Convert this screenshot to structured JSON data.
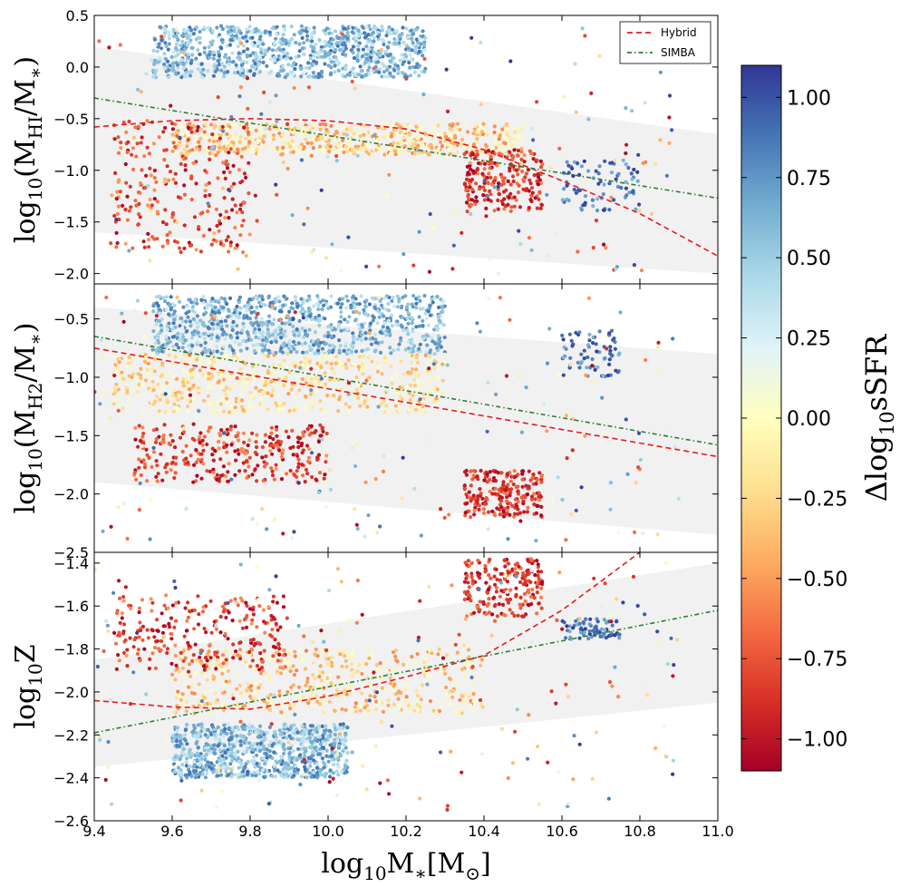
{
  "chart_data": [
    {
      "type": "scatter",
      "ylabel": "log10(MHI/M*)",
      "ylim": [
        -2.1,
        0.5
      ],
      "yticks": [
        "−2.0",
        "−1.5",
        "−1.0",
        "−0.5",
        "0.0",
        "0.5"
      ],
      "band": {
        "x": [
          9.4,
          11.0
        ],
        "lower": [
          -1.6,
          -2.0
        ],
        "upper": [
          0.2,
          -0.65
        ]
      },
      "clusters": [
        {
          "x": [
            9.55,
            10.25
          ],
          "y": [
            -0.1,
            0.4
          ],
          "dsfr": [
            0.3,
            0.9
          ],
          "n": 900
        },
        {
          "x": [
            9.6,
            10.5
          ],
          "y": [
            -0.85,
            -0.55
          ],
          "dsfr": [
            -0.6,
            0.1
          ],
          "n": 550
        },
        {
          "x": [
            9.45,
            9.8
          ],
          "y": [
            -1.8,
            -0.5
          ],
          "dsfr": [
            -1.1,
            -0.5
          ],
          "n": 250
        },
        {
          "x": [
            10.35,
            10.55
          ],
          "y": [
            -1.4,
            -0.8
          ],
          "dsfr": [
            -1.1,
            -0.6
          ],
          "n": 220
        },
        {
          "x": [
            10.6,
            10.8
          ],
          "y": [
            -1.4,
            -0.9
          ],
          "dsfr": [
            0.6,
            1.1
          ],
          "n": 80
        },
        {
          "x": [
            9.4,
            10.9
          ],
          "y": [
            -2.0,
            0.4
          ],
          "dsfr": [
            -1.1,
            1.1
          ],
          "n": 200
        }
      ],
      "lines": [
        {
          "name": "Hybrid",
          "style": "dashed",
          "color": "#e41a1c",
          "x": [
            9.4,
            9.6,
            9.8,
            10.0,
            10.2,
            10.4,
            10.6,
            10.8,
            11.0
          ],
          "y": [
            -0.58,
            -0.52,
            -0.5,
            -0.52,
            -0.6,
            -0.8,
            -1.1,
            -1.42,
            -1.83
          ]
        },
        {
          "name": "SIMBA",
          "style": "dashdot",
          "color": "#2e7d32",
          "x": [
            9.4,
            11.0
          ],
          "y": [
            -0.3,
            -1.27
          ]
        }
      ],
      "legend": "top-right"
    },
    {
      "type": "scatter",
      "ylabel": "log10(MH2/M*)",
      "ylim": [
        -2.5,
        -0.2
      ],
      "yticks": [
        "−2.5",
        "−2.0",
        "−1.5",
        "−1.0",
        "−0.5"
      ],
      "band": {
        "x": [
          9.4,
          11.0
        ],
        "lower": [
          -1.9,
          -2.35
        ],
        "upper": [
          -0.4,
          -0.8
        ]
      },
      "clusters": [
        {
          "x": [
            9.55,
            10.3
          ],
          "y": [
            -0.8,
            -0.3
          ],
          "dsfr": [
            0.3,
            0.9
          ],
          "n": 900
        },
        {
          "x": [
            9.45,
            10.3
          ],
          "y": [
            -1.3,
            -0.8
          ],
          "dsfr": [
            -0.5,
            0.1
          ],
          "n": 550
        },
        {
          "x": [
            9.5,
            10.0
          ],
          "y": [
            -1.9,
            -1.4
          ],
          "dsfr": [
            -1.1,
            -0.5
          ],
          "n": 300
        },
        {
          "x": [
            10.35,
            10.55
          ],
          "y": [
            -2.2,
            -1.8
          ],
          "dsfr": [
            -1.1,
            -0.6
          ],
          "n": 220
        },
        {
          "x": [
            10.6,
            10.75
          ],
          "y": [
            -1.0,
            -0.6
          ],
          "dsfr": [
            0.6,
            1.1
          ],
          "n": 70
        },
        {
          "x": [
            9.4,
            10.9
          ],
          "y": [
            -2.4,
            -0.3
          ],
          "dsfr": [
            -1.1,
            1.1
          ],
          "n": 200
        }
      ],
      "lines": [
        {
          "name": "Hybrid",
          "style": "dashed",
          "color": "#e41a1c",
          "x": [
            9.4,
            11.0
          ],
          "y": [
            -0.75,
            -1.68
          ]
        },
        {
          "name": "SIMBA",
          "style": "dashdot",
          "color": "#2e7d32",
          "x": [
            9.4,
            11.0
          ],
          "y": [
            -0.65,
            -1.58
          ]
        }
      ]
    },
    {
      "type": "scatter",
      "ylabel": "log10Z",
      "ylim": [
        -2.6,
        -1.35
      ],
      "yticks": [
        "−2.6",
        "−2.4",
        "−2.2",
        "−2.0",
        "−1.8",
        "−1.6",
        "−1.4"
      ],
      "band": {
        "x": [
          9.4,
          11.0
        ],
        "lower": [
          -2.35,
          -2.05
        ],
        "upper": [
          -1.85,
          -1.4
        ]
      },
      "clusters": [
        {
          "x": [
            9.6,
            10.05
          ],
          "y": [
            -2.4,
            -2.15
          ],
          "dsfr": [
            0.3,
            0.9
          ],
          "n": 800
        },
        {
          "x": [
            9.6,
            10.4
          ],
          "y": [
            -2.1,
            -1.8
          ],
          "dsfr": [
            -0.6,
            0.1
          ],
          "n": 450
        },
        {
          "x": [
            9.45,
            9.9
          ],
          "y": [
            -1.9,
            -1.55
          ],
          "dsfr": [
            -1.1,
            -0.5
          ],
          "n": 250
        },
        {
          "x": [
            10.35,
            10.55
          ],
          "y": [
            -1.65,
            -1.38
          ],
          "dsfr": [
            -1.1,
            -0.6
          ],
          "n": 200
        },
        {
          "x": [
            10.6,
            10.75
          ],
          "y": [
            -1.76,
            -1.66
          ],
          "dsfr": [
            0.6,
            1.1
          ],
          "n": 70
        },
        {
          "x": [
            9.4,
            10.9
          ],
          "y": [
            -2.55,
            -1.4
          ],
          "dsfr": [
            -1.1,
            1.1
          ],
          "n": 200
        }
      ],
      "lines": [
        {
          "name": "Hybrid",
          "style": "dashed",
          "color": "#e41a1c",
          "x": [
            9.4,
            9.6,
            9.8,
            10.0,
            10.2,
            10.4,
            10.6,
            10.8
          ],
          "y": [
            -2.04,
            -2.07,
            -2.08,
            -2.02,
            -1.93,
            -1.83,
            -1.62,
            -1.35
          ]
        },
        {
          "name": "SIMBA",
          "style": "dashdot",
          "color": "#2e7d32",
          "x": [
            9.4,
            11.0
          ],
          "y": [
            -2.19,
            -1.62
          ]
        }
      ]
    }
  ],
  "xaxis": {
    "label": "log10M*[M⊙]",
    "xlim": [
      9.4,
      11.0
    ],
    "ticks": [
      "9.4",
      "9.6",
      "9.8",
      "10.0",
      "10.2",
      "10.4",
      "10.6",
      "10.8",
      "11.0"
    ]
  },
  "legend": {
    "items": [
      "Hybrid",
      "SIMBA"
    ]
  },
  "colorbar": {
    "label": "Δlog10sSFR",
    "range": [
      -1.1,
      1.1
    ],
    "colormap": "RdYlBu",
    "ticks": [
      "−1.00",
      "−0.75",
      "−0.50",
      "−0.25",
      "0.00",
      "0.25",
      "0.50",
      "0.75",
      "1.00"
    ]
  }
}
